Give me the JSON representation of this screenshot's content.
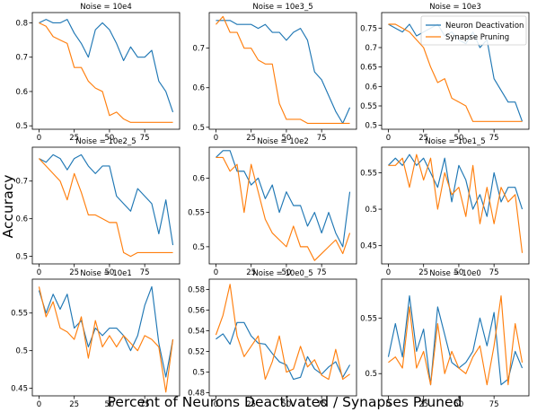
{
  "figure": {
    "xlabel": "Percent of Neurons Deactivated / Synapses Pruned",
    "ylabel": "Accuracy"
  },
  "legend": {
    "location": "upper right of top-right panel",
    "entries": [
      {
        "name": "Neuron Deactivation",
        "color": "#1f77b4"
      },
      {
        "name": "Synapse Pruning",
        "color": "#ff7f0e"
      }
    ]
  },
  "colors": {
    "series0": "#1f77b4",
    "series1": "#ff7f0e"
  },
  "chart_data": [
    {
      "type": "line",
      "title": "Noise = 10e4",
      "x": [
        0,
        5,
        10,
        15,
        20,
        25,
        30,
        35,
        40,
        45,
        50,
        55,
        60,
        65,
        70,
        75,
        80,
        85,
        90,
        95
      ],
      "xlim": [
        -4.75,
        99.75
      ],
      "xticks": [
        0,
        25,
        50,
        75
      ],
      "ylim": [
        0.49,
        0.83
      ],
      "yticks": [
        0.5,
        0.6,
        0.7,
        0.8
      ],
      "series": [
        {
          "name": "Neuron Deactivation",
          "values": [
            0.8,
            0.81,
            0.8,
            0.8,
            0.81,
            0.77,
            0.74,
            0.7,
            0.78,
            0.8,
            0.78,
            0.74,
            0.69,
            0.73,
            0.7,
            0.7,
            0.72,
            0.63,
            0.6,
            0.54
          ]
        },
        {
          "name": "Synapse Pruning",
          "values": [
            0.8,
            0.79,
            0.76,
            0.75,
            0.74,
            0.67,
            0.67,
            0.63,
            0.61,
            0.6,
            0.53,
            0.54,
            0.52,
            0.51,
            0.51,
            0.51,
            0.51,
            0.51,
            0.51,
            0.51
          ]
        }
      ]
    },
    {
      "type": "line",
      "title": "Noise = 10e3_5",
      "x": [
        0,
        5,
        10,
        15,
        20,
        25,
        30,
        35,
        40,
        45,
        50,
        55,
        60,
        65,
        70,
        75,
        80,
        85,
        90,
        95
      ],
      "xlim": [
        -4.75,
        99.75
      ],
      "xticks": [
        0,
        25,
        50,
        75
      ],
      "ylim": [
        0.495,
        0.79
      ],
      "yticks": [
        0.5,
        0.6,
        0.7
      ],
      "series": [
        {
          "name": "Neuron Deactivation",
          "values": [
            0.77,
            0.77,
            0.77,
            0.76,
            0.76,
            0.76,
            0.75,
            0.76,
            0.74,
            0.74,
            0.72,
            0.74,
            0.75,
            0.72,
            0.64,
            0.62,
            0.58,
            0.54,
            0.51,
            0.55
          ]
        },
        {
          "name": "Synapse Pruning",
          "values": [
            0.76,
            0.78,
            0.74,
            0.74,
            0.7,
            0.7,
            0.67,
            0.66,
            0.66,
            0.56,
            0.52,
            0.52,
            0.52,
            0.51,
            0.51,
            0.51,
            0.51,
            0.51,
            0.51,
            0.51
          ]
        }
      ]
    },
    {
      "type": "line",
      "title": "Noise = 10e3",
      "x": [
        0,
        5,
        10,
        15,
        20,
        25,
        30,
        35,
        40,
        45,
        50,
        55,
        60,
        65,
        70,
        75,
        80,
        85,
        90,
        95
      ],
      "xlim": [
        -4.75,
        99.75
      ],
      "xticks": [
        0,
        25,
        50,
        75
      ],
      "ylim": [
        0.49,
        0.79
      ],
      "yticks": [
        0.5,
        0.55,
        0.6,
        0.65,
        0.7,
        0.75
      ],
      "series": [
        {
          "name": "Neuron Deactivation",
          "values": [
            0.76,
            0.75,
            0.74,
            0.76,
            0.73,
            0.74,
            0.75,
            0.76,
            0.73,
            0.74,
            0.72,
            0.71,
            0.74,
            0.7,
            0.72,
            0.62,
            0.59,
            0.56,
            0.56,
            0.51
          ]
        },
        {
          "name": "Synapse Pruning",
          "values": [
            0.76,
            0.76,
            0.75,
            0.74,
            0.72,
            0.7,
            0.65,
            0.61,
            0.62,
            0.57,
            0.56,
            0.55,
            0.51,
            0.51,
            0.51,
            0.51,
            0.51,
            0.51,
            0.51,
            0.51
          ]
        }
      ]
    },
    {
      "type": "line",
      "title": "Noise = 10e2_5",
      "x": [
        0,
        5,
        10,
        15,
        20,
        25,
        30,
        35,
        40,
        45,
        50,
        55,
        60,
        65,
        70,
        75,
        80,
        85,
        90,
        95
      ],
      "xlim": [
        -4.75,
        99.75
      ],
      "xticks": [
        0,
        25,
        50,
        75
      ],
      "ylim": [
        0.48,
        0.79
      ],
      "yticks": [
        0.5,
        0.6,
        0.7
      ],
      "series": [
        {
          "name": "Neuron Deactivation",
          "values": [
            0.76,
            0.75,
            0.77,
            0.76,
            0.73,
            0.76,
            0.77,
            0.74,
            0.72,
            0.74,
            0.74,
            0.66,
            0.64,
            0.62,
            0.68,
            0.66,
            0.64,
            0.56,
            0.65,
            0.53
          ]
        },
        {
          "name": "Synapse Pruning",
          "values": [
            0.76,
            0.74,
            0.72,
            0.7,
            0.65,
            0.72,
            0.67,
            0.61,
            0.61,
            0.6,
            0.59,
            0.59,
            0.51,
            0.5,
            0.51,
            0.51,
            0.51,
            0.51,
            0.51,
            0.51
          ]
        }
      ]
    },
    {
      "type": "line",
      "title": "Noise = 10e2",
      "x": [
        0,
        5,
        10,
        15,
        20,
        25,
        30,
        35,
        40,
        45,
        50,
        55,
        60,
        65,
        70,
        75,
        80,
        85,
        90,
        95
      ],
      "xlim": [
        -4.75,
        99.75
      ],
      "xticks": [
        0,
        25,
        50,
        75
      ],
      "ylim": [
        0.475,
        0.645
      ],
      "yticks": [
        0.5,
        0.55,
        0.6
      ],
      "series": [
        {
          "name": "Neuron Deactivation",
          "values": [
            0.63,
            0.64,
            0.64,
            0.61,
            0.61,
            0.59,
            0.6,
            0.57,
            0.59,
            0.55,
            0.58,
            0.56,
            0.56,
            0.53,
            0.55,
            0.52,
            0.55,
            0.52,
            0.5,
            0.58
          ]
        },
        {
          "name": "Synapse Pruning",
          "values": [
            0.63,
            0.63,
            0.61,
            0.62,
            0.55,
            0.62,
            0.58,
            0.54,
            0.52,
            0.51,
            0.5,
            0.53,
            0.5,
            0.5,
            0.48,
            0.49,
            0.5,
            0.51,
            0.49,
            0.52
          ]
        }
      ]
    },
    {
      "type": "line",
      "title": "Noise = 10e1_5",
      "x": [
        0,
        5,
        10,
        15,
        20,
        25,
        30,
        35,
        40,
        45,
        50,
        55,
        60,
        65,
        70,
        75,
        80,
        85,
        90,
        95
      ],
      "xlim": [
        -4.75,
        99.75
      ],
      "xticks": [
        0,
        25,
        50,
        75
      ],
      "ylim": [
        0.425,
        0.585
      ],
      "yticks": [
        0.45,
        0.5,
        0.55
      ],
      "series": [
        {
          "name": "Neuron Deactivation",
          "values": [
            0.56,
            0.57,
            0.56,
            0.575,
            0.56,
            0.57,
            0.55,
            0.53,
            0.57,
            0.51,
            0.56,
            0.54,
            0.5,
            0.52,
            0.49,
            0.55,
            0.51,
            0.53,
            0.53,
            0.5
          ]
        },
        {
          "name": "Synapse Pruning",
          "values": [
            0.56,
            0.56,
            0.57,
            0.53,
            0.575,
            0.54,
            0.57,
            0.5,
            0.55,
            0.52,
            0.53,
            0.49,
            0.56,
            0.48,
            0.53,
            0.48,
            0.53,
            0.51,
            0.52,
            0.44
          ]
        }
      ]
    },
    {
      "type": "line",
      "title": "Noise = 10e1",
      "x": [
        0,
        5,
        10,
        15,
        20,
        25,
        30,
        35,
        40,
        45,
        50,
        55,
        60,
        65,
        70,
        75,
        80,
        85,
        90,
        95
      ],
      "xlim": [
        -4.75,
        99.75
      ],
      "xticks": [
        0,
        25,
        50,
        75
      ],
      "ylim": [
        0.44,
        0.595
      ],
      "yticks": [
        0.45,
        0.5,
        0.55
      ],
      "series": [
        {
          "name": "Neuron Deactivation",
          "values": [
            0.58,
            0.55,
            0.575,
            0.555,
            0.575,
            0.53,
            0.54,
            0.505,
            0.53,
            0.52,
            0.53,
            0.53,
            0.52,
            0.5,
            0.52,
            0.56,
            0.585,
            0.51,
            0.465,
            0.515
          ]
        },
        {
          "name": "Synapse Pruning",
          "values": [
            0.585,
            0.545,
            0.565,
            0.53,
            0.525,
            0.515,
            0.545,
            0.49,
            0.54,
            0.505,
            0.52,
            0.505,
            0.52,
            0.51,
            0.5,
            0.52,
            0.515,
            0.505,
            0.445,
            0.515
          ]
        }
      ]
    },
    {
      "type": "line",
      "title": "Noise = 10e0_5",
      "x": [
        0,
        5,
        10,
        15,
        20,
        25,
        30,
        35,
        40,
        45,
        50,
        55,
        60,
        65,
        70,
        75,
        80,
        85,
        90,
        95
      ],
      "xlim": [
        -4.75,
        99.75
      ],
      "xticks": [
        0,
        25,
        50,
        75
      ],
      "ylim": [
        0.477,
        0.59
      ],
      "yticks": [
        0.48,
        0.5,
        0.52,
        0.54,
        0.56,
        0.58
      ],
      "series": [
        {
          "name": "Neuron Deactivation",
          "values": [
            0.532,
            0.537,
            0.527,
            0.548,
            0.548,
            0.535,
            0.528,
            0.527,
            0.518,
            0.51,
            0.507,
            0.493,
            0.495,
            0.515,
            0.503,
            0.498,
            0.505,
            0.51,
            0.495,
            0.507
          ]
        },
        {
          "name": "Synapse Pruning",
          "values": [
            0.536,
            0.555,
            0.585,
            0.535,
            0.515,
            0.525,
            0.535,
            0.493,
            0.51,
            0.535,
            0.5,
            0.503,
            0.525,
            0.505,
            0.512,
            0.497,
            0.493,
            0.522,
            0.493,
            0.498
          ]
        }
      ]
    },
    {
      "type": "line",
      "title": "Noise = 10e0",
      "x": [
        0,
        5,
        10,
        15,
        20,
        25,
        30,
        35,
        40,
        45,
        50,
        55,
        60,
        65,
        70,
        75,
        80,
        85,
        90,
        95
      ],
      "xlim": [
        -4.75,
        99.75
      ],
      "xticks": [
        0,
        25,
        50,
        75
      ],
      "ylim": [
        0.48,
        0.585
      ],
      "yticks": [
        0.5,
        0.55
      ],
      "series": [
        {
          "name": "Neuron Deactivation",
          "values": [
            0.515,
            0.545,
            0.515,
            0.57,
            0.52,
            0.54,
            0.49,
            0.56,
            0.535,
            0.51,
            0.505,
            0.51,
            0.52,
            0.55,
            0.525,
            0.555,
            0.49,
            0.495,
            0.52,
            0.505
          ]
        },
        {
          "name": "Synapse Pruning",
          "values": [
            0.51,
            0.515,
            0.505,
            0.56,
            0.505,
            0.52,
            0.49,
            0.545,
            0.5,
            0.52,
            0.505,
            0.5,
            0.515,
            0.525,
            0.49,
            0.525,
            0.57,
            0.49,
            0.545,
            0.51
          ]
        }
      ]
    }
  ]
}
